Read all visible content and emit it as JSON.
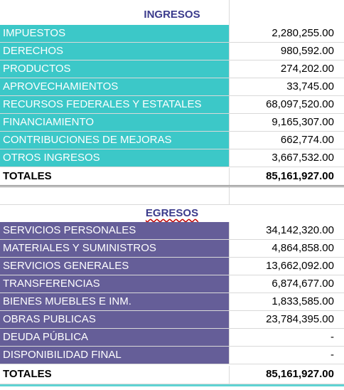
{
  "ingresos": {
    "title": "INGRESOS",
    "rows": [
      [
        "IMPUESTOS",
        "2,280,255.00"
      ],
      [
        "DERECHOS",
        "980,592.00"
      ],
      [
        "PRODUCTOS",
        "274,202.00"
      ],
      [
        "APROVECHAMIENTOS",
        "33,745.00"
      ],
      [
        "RECURSOS FEDERALES Y ESTATALES",
        "68,097,520.00"
      ],
      [
        "FINANCIAMIENTO",
        "9,165,307.00"
      ],
      [
        "CONTRIBUCIONES DE MEJORAS",
        "662,774.00"
      ],
      [
        "OTROS INGRESOS",
        "3,667,532.00"
      ]
    ],
    "total": [
      "TOTALES",
      "85,161,927.00"
    ]
  },
  "egresos": {
    "title": "EGRESOS",
    "rows": [
      [
        "SERVICIOS PERSONALES",
        "34,142,320.00"
      ],
      [
        "MATERIALES Y SUMINISTROS",
        "4,864,858.00"
      ],
      [
        "SERVICIOS GENERALES",
        "13,662,092.00"
      ],
      [
        "TRANSFERENCIAS",
        "6,874,677.00"
      ],
      [
        "BIENES MUEBLES E INM.",
        "1,833,585.00"
      ],
      [
        "OBRAS PUBLICAS",
        "23,784,395.00"
      ],
      [
        "DEUDA PÚBLICA",
        "-"
      ],
      [
        "DISPONIBILIDAD FINAL",
        "-"
      ]
    ],
    "total": [
      "TOTALES",
      "85,161,927.00"
    ]
  }
}
